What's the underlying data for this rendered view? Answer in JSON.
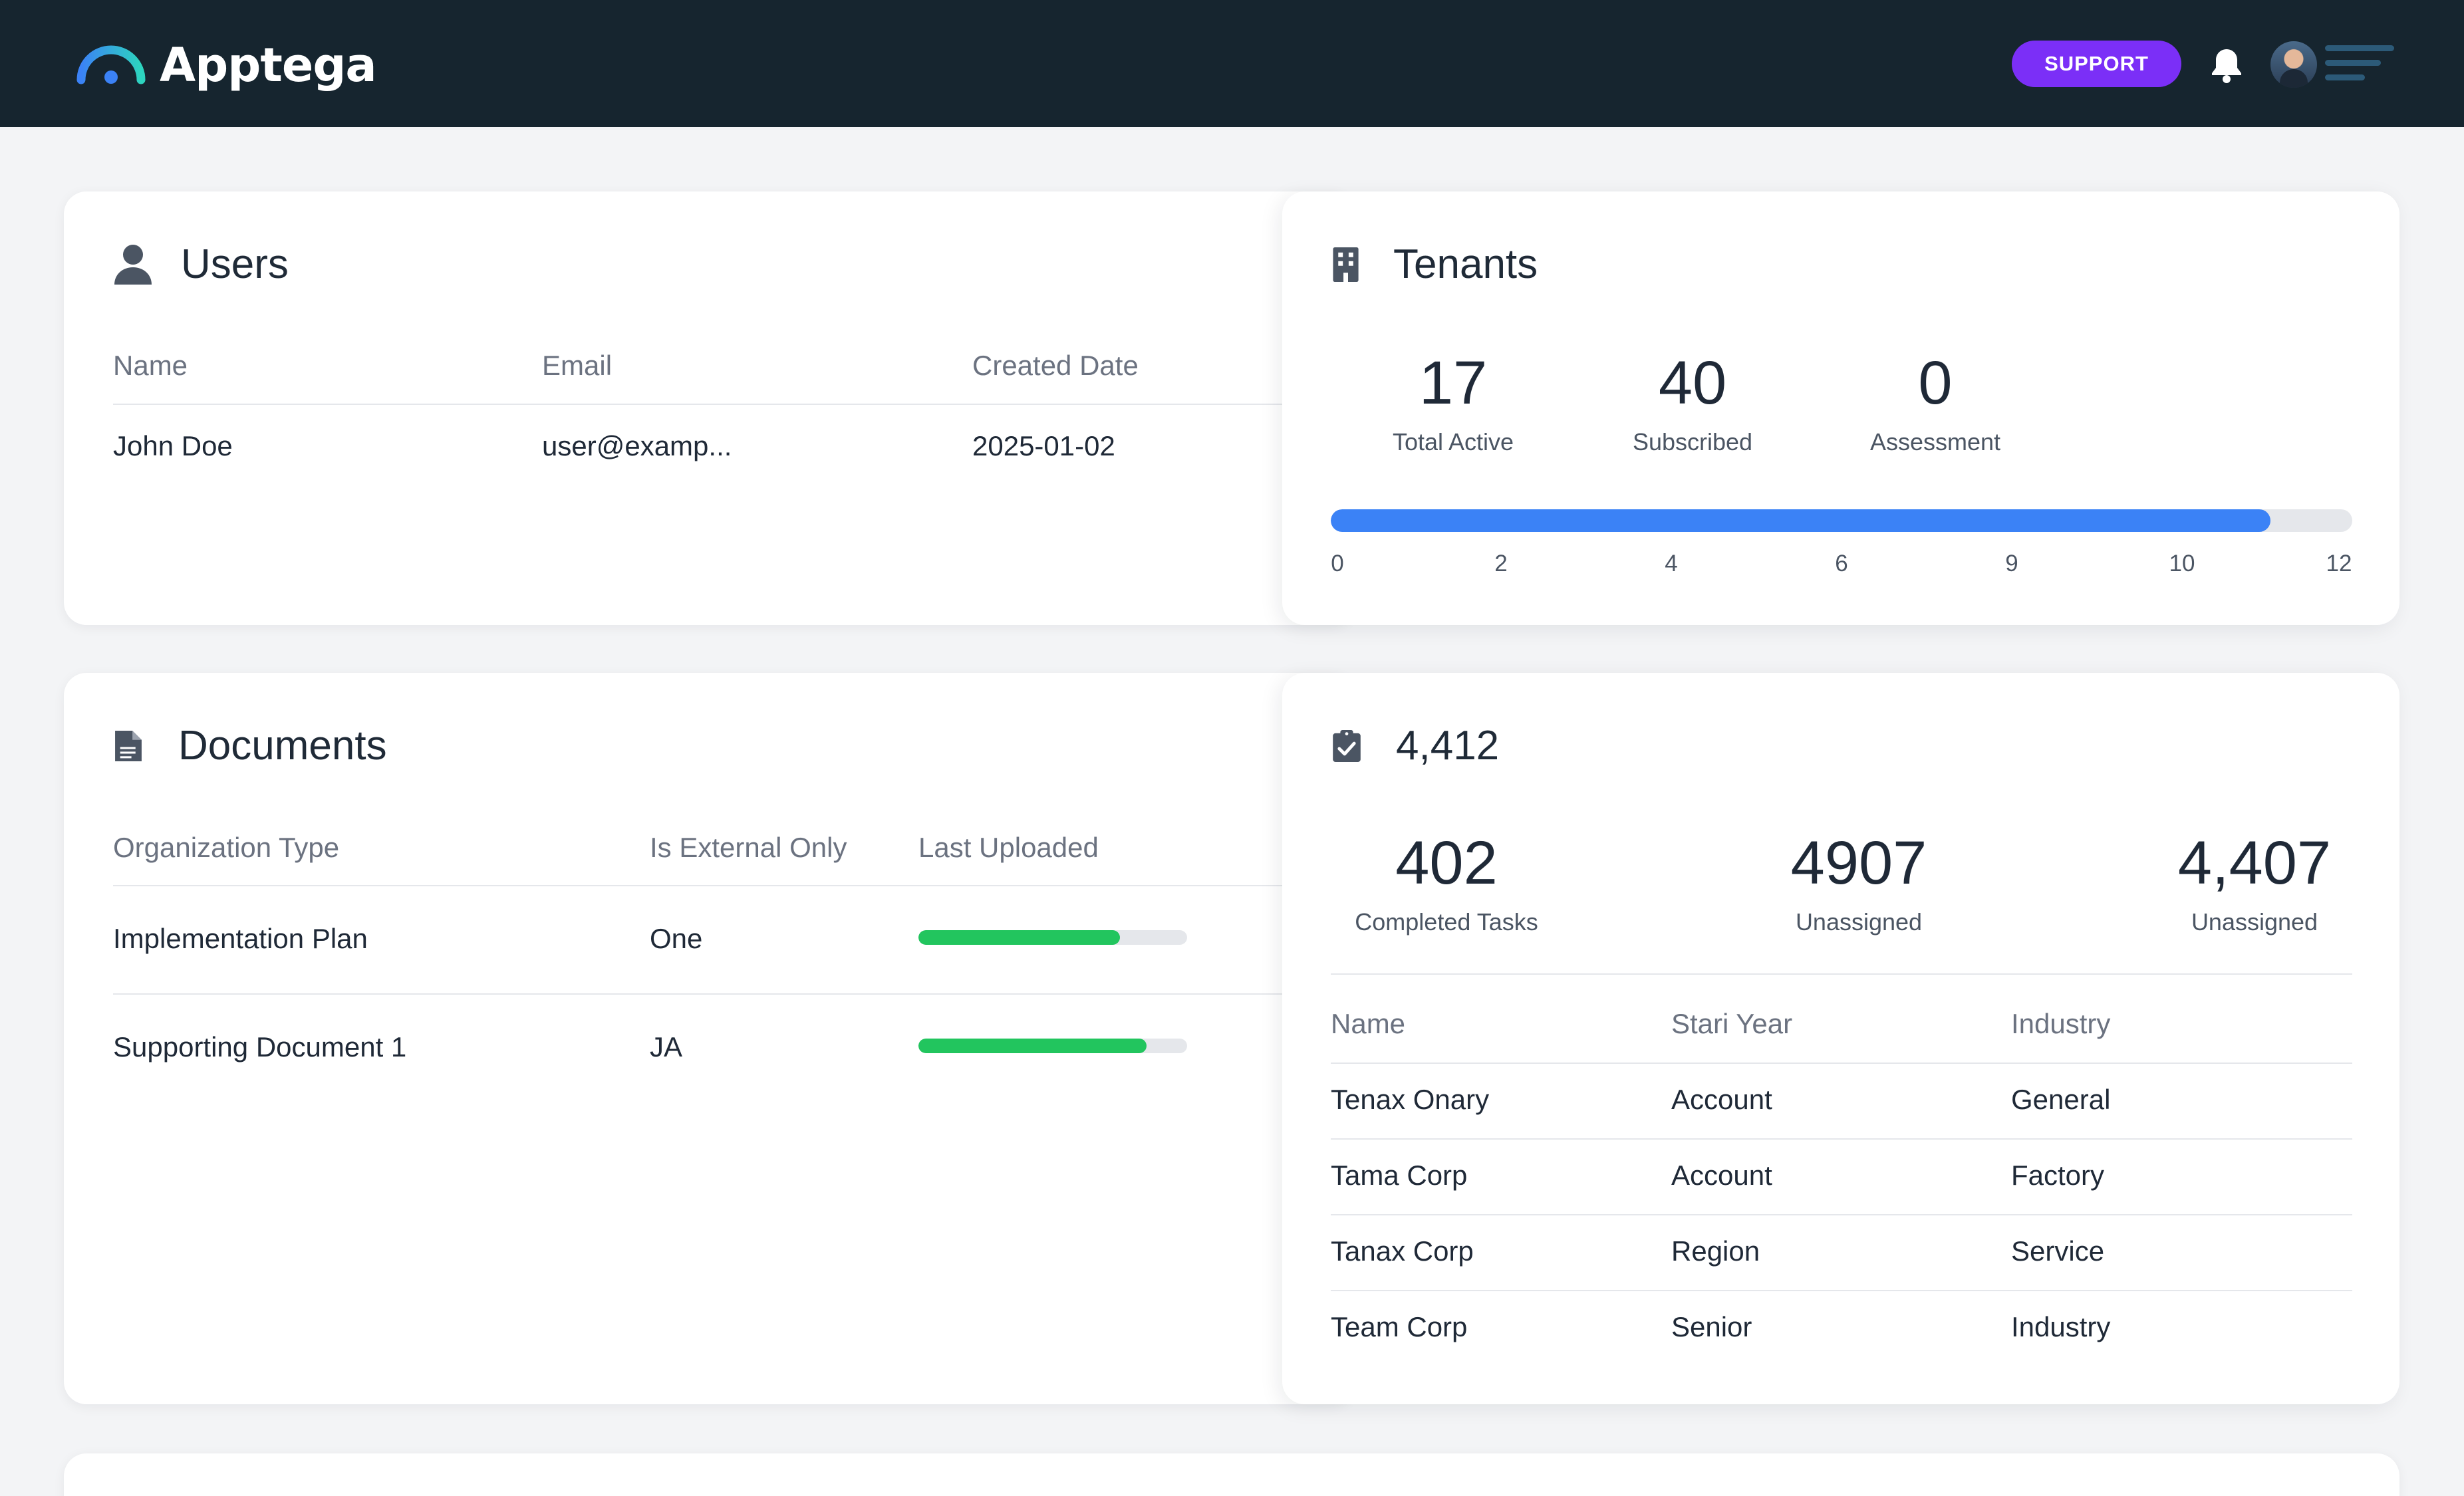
{
  "header": {
    "brand": "Apptega",
    "support_label": "SUPPORT"
  },
  "icons": {
    "brand_logo": "apptega-arc-logo",
    "notifications": "bell-icon",
    "avatar": "user-avatar",
    "menu": "hamburger-menu-icon",
    "users": "user-icon",
    "tenants": "building-icon",
    "documents": "document-icon",
    "tasks": "clipboard-check-icon"
  },
  "colors": {
    "header_bg": "#16252f",
    "support": "#7b2ff7",
    "progress_blue": "#3b82f6",
    "progress_green": "#22c55e"
  },
  "users": {
    "title": "Users",
    "columns": [
      "Name",
      "Email",
      "Created Date"
    ],
    "rows": [
      [
        "John Doe",
        "user@examp...",
        "2025-01-02"
      ]
    ]
  },
  "tenants": {
    "title": "Tenants",
    "stats": [
      {
        "value": "17",
        "label": "Total Active"
      },
      {
        "value": "40",
        "label": "Subscribed"
      },
      {
        "value": "0",
        "label": "Assessment"
      }
    ],
    "progress_fraction": 0.92,
    "scale": [
      "0",
      "2",
      "4",
      "6",
      "9",
      "10",
      "12"
    ]
  },
  "documents": {
    "title": "Documents",
    "columns": [
      "Organization Type",
      "Is External Only",
      "Last Uploaded"
    ],
    "rows": [
      {
        "org_type": "Implementation Plan",
        "external": "One",
        "progress_fraction": 0.75
      },
      {
        "org_type": "Supporting Document 1",
        "external": "JA",
        "progress_fraction": 0.85
      }
    ]
  },
  "tasks": {
    "title": "4,412",
    "stats": [
      {
        "value": "402",
        "label": "Completed Tasks"
      },
      {
        "value": "4907",
        "label": "Unassigned"
      },
      {
        "value": "4,407",
        "label": "Unassigned"
      }
    ],
    "columns": [
      "Name",
      "Stari Year",
      "Industry"
    ],
    "rows": [
      [
        "Tenax Onary",
        "Account",
        "General"
      ],
      [
        "Tama Corp",
        "Account",
        "Factory"
      ],
      [
        "Tanax Corp",
        "Region",
        "Service"
      ],
      [
        "Team Corp",
        "Senior",
        "Industry"
      ]
    ]
  }
}
